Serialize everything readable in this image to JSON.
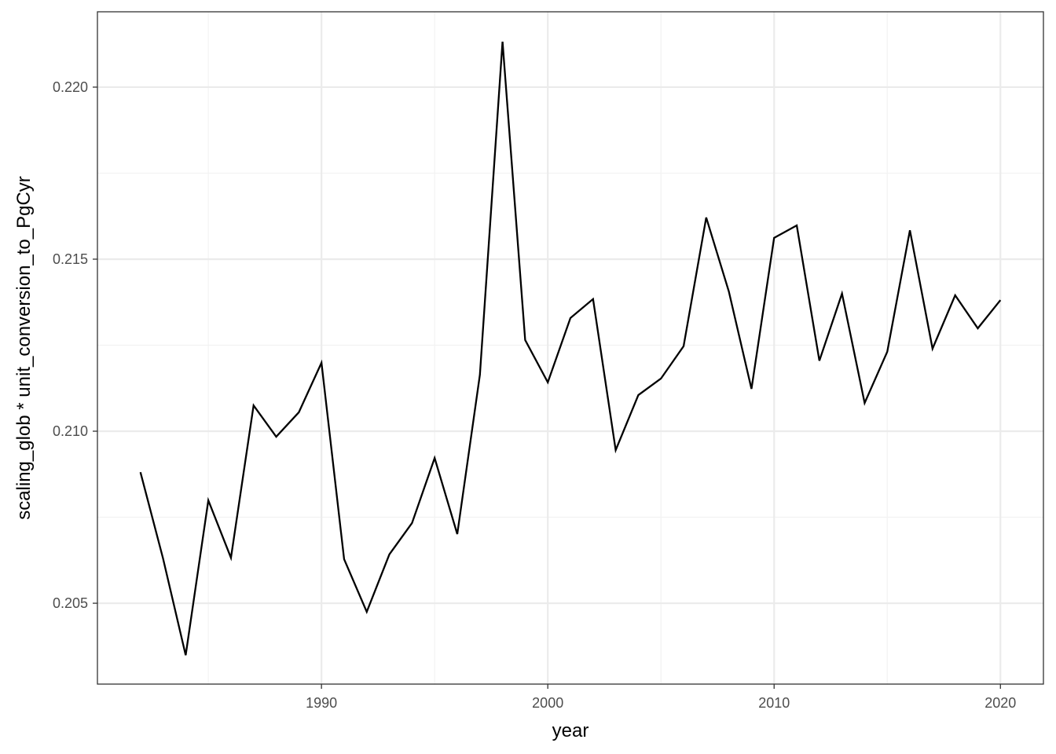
{
  "chart_data": {
    "type": "line",
    "x_label": "year",
    "y_label": "scaling_glob * unit_conversion_to_PgCyr",
    "x": [
      1982,
      1983,
      1984,
      1985,
      1986,
      1987,
      1988,
      1989,
      1990,
      1991,
      1992,
      1993,
      1994,
      1995,
      1996,
      1997,
      1998,
      1999,
      2000,
      2001,
      2002,
      2003,
      2004,
      2005,
      2006,
      2007,
      2008,
      2009,
      2010,
      2011,
      2012,
      2013,
      2014,
      2015,
      2016,
      2017,
      2018,
      2019,
      2020
    ],
    "values": [
      0.20881,
      0.2063,
      0.20349,
      0.20799,
      0.20632,
      0.21075,
      0.20984,
      0.21055,
      0.21199,
      0.20628,
      0.20475,
      0.20642,
      0.20733,
      0.20922,
      0.20701,
      0.21164,
      0.22132,
      0.21265,
      0.21142,
      0.21329,
      0.21384,
      0.20945,
      0.21105,
      0.21153,
      0.21247,
      0.21621,
      0.21406,
      0.21123,
      0.21562,
      0.21598,
      0.21205,
      0.214,
      0.21082,
      0.21231,
      0.21584,
      0.2124,
      0.21395,
      0.21299,
      0.21381
    ],
    "color": "#000000",
    "xlim": [
      1980.1,
      2021.9
    ],
    "ylim": [
      0.20265,
      0.22219
    ],
    "xticks": [
      1990,
      2000,
      2010,
      2020
    ],
    "yticks": [
      0.205,
      {
        "value": 0.21,
        "label": "0.210"
      },
      0.215,
      {
        "value": 0.22,
        "label": "0.220"
      }
    ],
    "x_minor_ticks": [
      1985,
      1995,
      2005,
      2015
    ],
    "y_minor_ticks": [
      0.2075,
      0.2125,
      0.2175
    ],
    "grid": true
  }
}
